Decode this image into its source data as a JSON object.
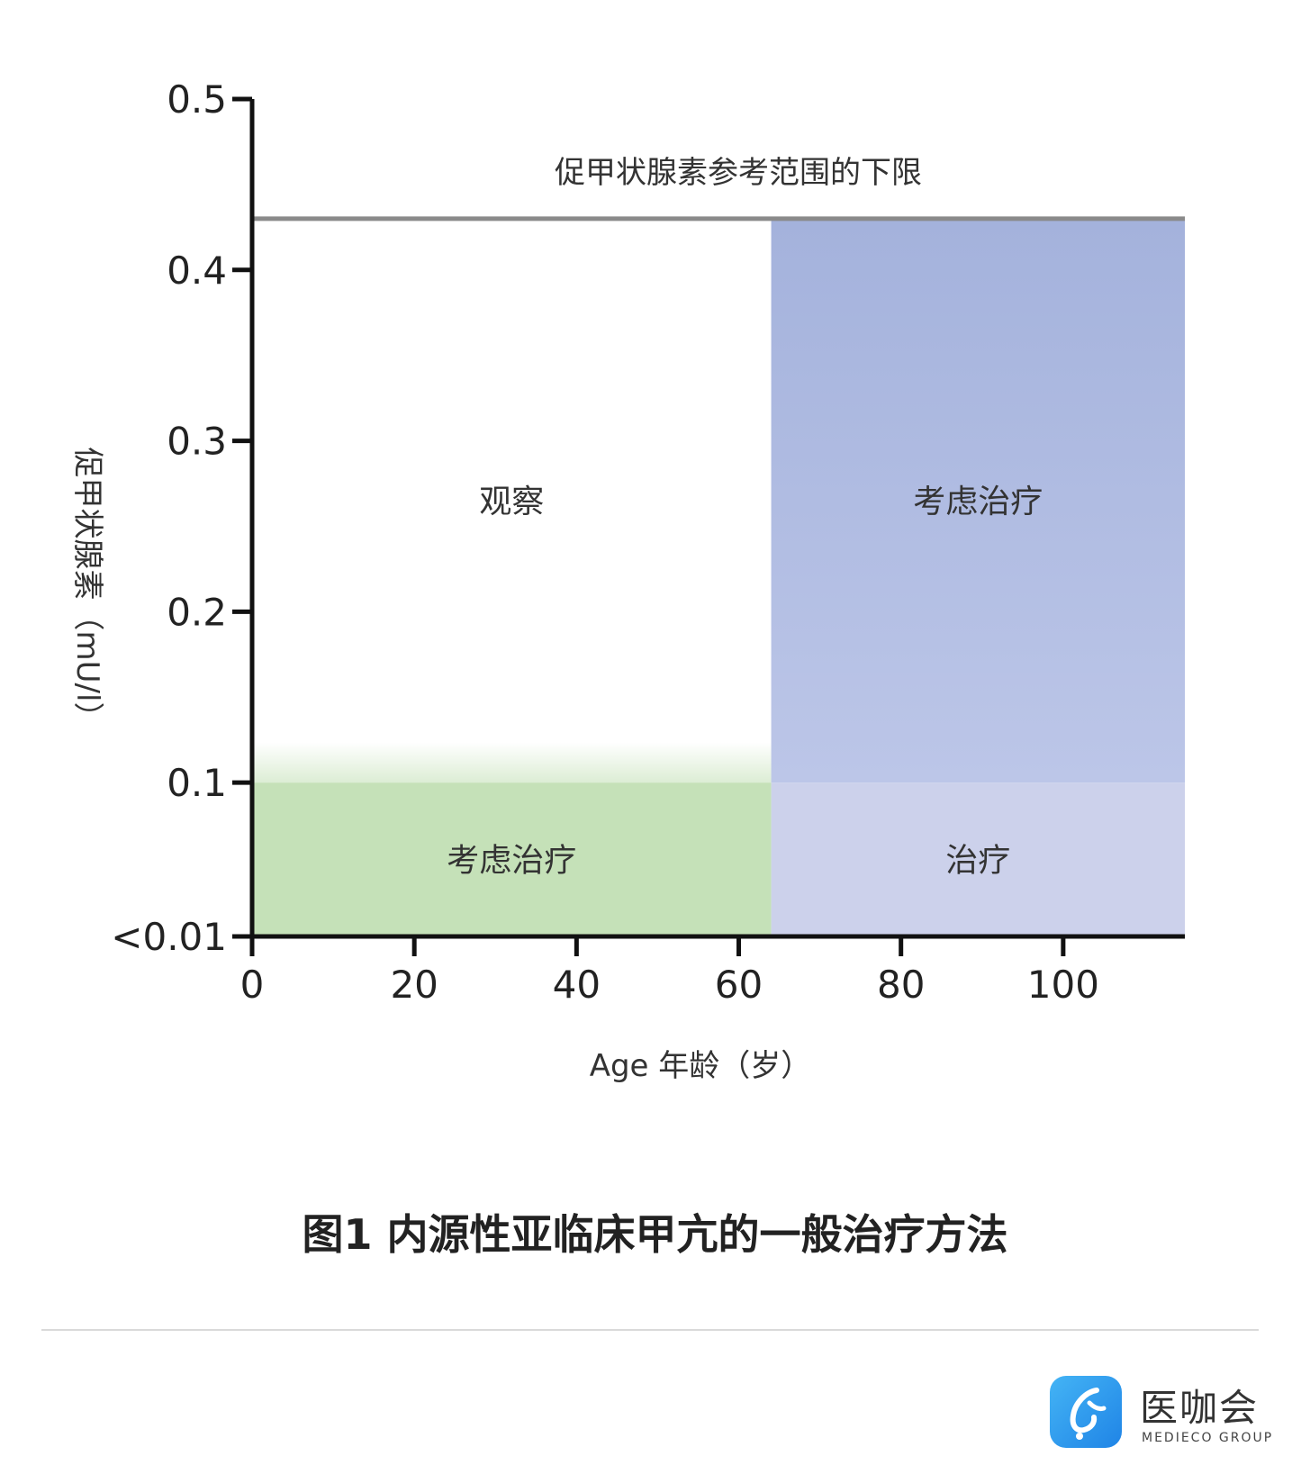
{
  "chart_data": {
    "type": "area",
    "ylabel": "促甲状腺素（mU/l）",
    "xlabel": "Age 年龄（岁）",
    "x_ticks": [
      0,
      20,
      40,
      60,
      80,
      100
    ],
    "y_ticks": [
      {
        "value": 0.01,
        "label": "<0.01"
      },
      {
        "value": 0.1,
        "label": "0.1"
      },
      {
        "value": 0.2,
        "label": "0.2"
      },
      {
        "value": 0.3,
        "label": "0.3"
      },
      {
        "value": 0.4,
        "label": "0.4"
      },
      {
        "value": 0.5,
        "label": "0.5"
      }
    ],
    "xlim": [
      0,
      115
    ],
    "ylim": [
      0.01,
      0.5
    ],
    "reference_line": {
      "y": 0.43,
      "label": "促甲状腺素参考范围的下限"
    },
    "age_cutoff": 64,
    "tsh_cutoff": 0.1,
    "regions": [
      {
        "label": "观察",
        "x": [
          0,
          64
        ],
        "y": [
          0.1,
          0.43
        ],
        "color": "#ffffff"
      },
      {
        "label": "考虑治疗",
        "x": [
          64,
          115
        ],
        "y": [
          0.1,
          0.43
        ],
        "color": "#a4b2dc"
      },
      {
        "label": "考虑治疗",
        "x": [
          0,
          64
        ],
        "y": [
          0.01,
          0.1
        ],
        "color": "#c5e1b8"
      },
      {
        "label": "治疗",
        "x": [
          64,
          115
        ],
        "y": [
          0.01,
          0.1
        ],
        "color": "#ccd1eb"
      }
    ],
    "grid": false,
    "legend": "none"
  },
  "caption": "图1 内源性亚临床甲亢的一般治疗方法",
  "brand": {
    "name": "医咖会",
    "sub": "MEDIECO GROUP",
    "color": "#2a8cec"
  }
}
